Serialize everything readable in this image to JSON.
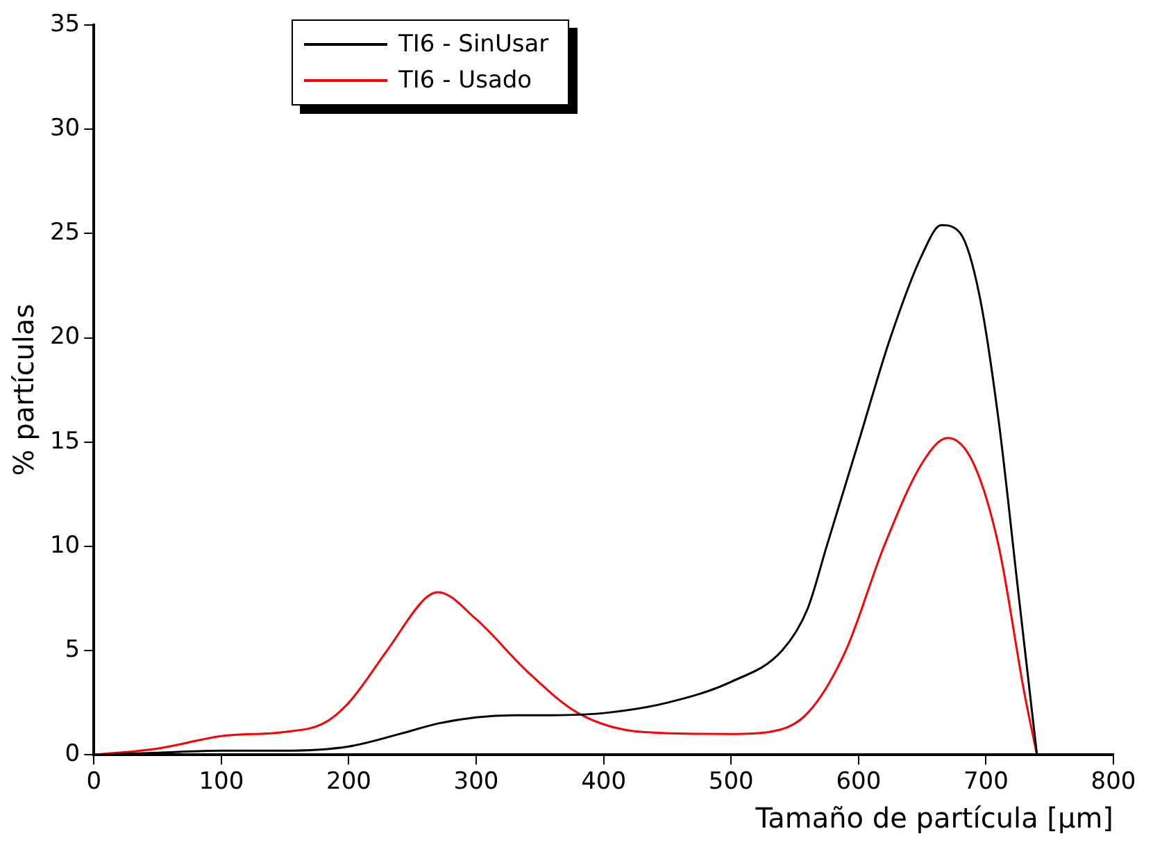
{
  "chart_data": {
    "type": "line",
    "xlabel": "Tamaño de partícula [µm]",
    "ylabel": "% partículas",
    "xlim": [
      0,
      800
    ],
    "ylim": [
      0,
      35
    ],
    "xticks": [
      0,
      100,
      200,
      300,
      400,
      500,
      600,
      700,
      800
    ],
    "yticks": [
      0,
      5,
      10,
      15,
      20,
      25,
      30,
      35
    ],
    "grid": false,
    "legend": "top left",
    "marker": "none",
    "line_style": "solid",
    "series": [
      {
        "name": "TI6 - SinUsar",
        "color": "#000000",
        "x": [
          0,
          50,
          100,
          150,
          200,
          240,
          270,
          300,
          330,
          360,
          400,
          450,
          500,
          540,
          560,
          575,
          600,
          625,
          650,
          665,
          680,
          695,
          710,
          725,
          740
        ],
        "values": [
          0,
          0.1,
          0.2,
          0.2,
          0.4,
          1,
          1.5,
          1.8,
          1.9,
          1.9,
          2,
          2.5,
          3.5,
          5,
          7,
          10,
          15,
          20,
          24,
          25.4,
          25,
          22,
          16,
          8,
          0
        ]
      },
      {
        "name": "TI6 - Usado",
        "color": "#ff0000",
        "x": [
          0,
          50,
          100,
          150,
          180,
          200,
          230,
          260,
          270,
          300,
          340,
          380,
          430,
          500,
          530,
          560,
          590,
          620,
          650,
          670,
          690,
          710,
          730,
          740
        ],
        "values": [
          0,
          0.3,
          0.9,
          1.1,
          1.5,
          2.5,
          5,
          7.5,
          7.8,
          6.5,
          4,
          2,
          1.1,
          1,
          1.1,
          2,
          5,
          10,
          14,
          15.2,
          14,
          10,
          3,
          0
        ]
      }
    ]
  }
}
